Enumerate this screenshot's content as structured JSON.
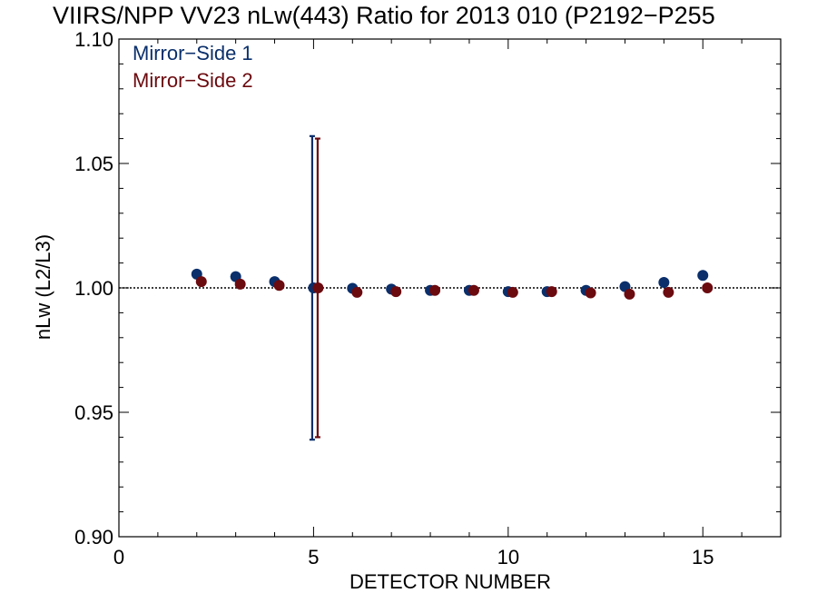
{
  "chart_data": {
    "type": "scatter",
    "title": "VIIRS/NPP VV23 nLw(443) Ratio for 2013 010 (P2192−P255",
    "xlabel": "DETECTOR NUMBER",
    "ylabel": "nLw (L2/L3)",
    "xlim": [
      0,
      17
    ],
    "ylim": [
      0.9,
      1.1
    ],
    "x_ticks": [
      0,
      5,
      10,
      15
    ],
    "x_tick_labels": [
      "0",
      "5",
      "10",
      "15"
    ],
    "y_ticks": [
      0.9,
      0.95,
      1.0,
      1.05,
      1.1
    ],
    "y_tick_labels": [
      "0.90",
      "0.95",
      "1.00",
      "1.05",
      "1.10"
    ],
    "reference_line": 1.0,
    "grid": false,
    "legend_position": "top-left",
    "series": [
      {
        "name": "Mirror−Side 1",
        "color": "#0a2f6b",
        "x": [
          2,
          3,
          4,
          5,
          6,
          7,
          8,
          9,
          10,
          11,
          12,
          13,
          14,
          15
        ],
        "y": [
          1.0055,
          1.0045,
          1.0025,
          1.0,
          0.9998,
          0.9995,
          0.999,
          0.999,
          0.9985,
          0.9985,
          0.999,
          1.0005,
          1.0022,
          1.005
        ],
        "error_bar": {
          "x": 5,
          "low": 0.939,
          "high": 1.061
        }
      },
      {
        "name": "Mirror−Side 2",
        "color": "#6b0a0f",
        "x": [
          2,
          3,
          4,
          5,
          6,
          7,
          8,
          9,
          10,
          11,
          12,
          13,
          14,
          15
        ],
        "y": [
          1.0025,
          1.0015,
          1.001,
          1.0,
          0.9982,
          0.9985,
          0.999,
          0.999,
          0.9982,
          0.9985,
          0.998,
          0.9975,
          0.9982,
          1.0
        ],
        "error_bar": {
          "x": 5,
          "low": 0.94,
          "high": 1.06
        }
      }
    ]
  }
}
